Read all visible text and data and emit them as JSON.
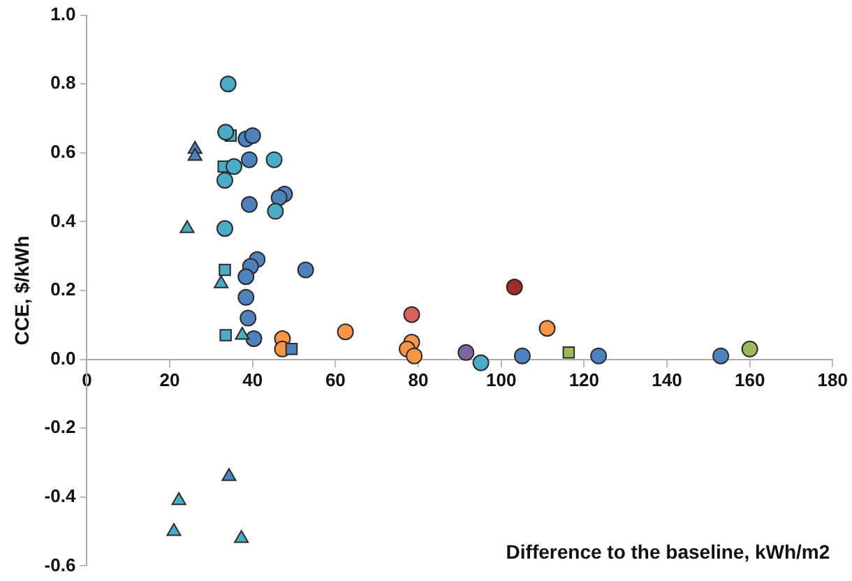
{
  "chart_data": {
    "type": "scatter",
    "xlabel": "Difference to the baseline, kWh/m2",
    "ylabel": "CCE, $/kWh",
    "xlim": [
      0,
      180
    ],
    "xticks": [
      0,
      20,
      40,
      60,
      80,
      100,
      120,
      140,
      160,
      180
    ],
    "ylim": [
      -0.6,
      1
    ],
    "yticks": [
      {
        "value": -0.6,
        "label": "-0.6"
      },
      {
        "value": -0.4,
        "label": "-0.4"
      },
      {
        "value": -0.2,
        "label": "-0.2"
      },
      {
        "value": 0,
        "label": "0.0"
      },
      {
        "value": 0.2,
        "label": "0.2"
      },
      {
        "value": 0.4,
        "label": "0.4"
      },
      {
        "value": 0.6,
        "label": "0.6"
      },
      {
        "value": 0.8,
        "label": "0.8"
      },
      {
        "value": 1,
        "label": "1.0"
      }
    ],
    "grid": false,
    "legend": false,
    "series": [
      {
        "color": "#4bacc6",
        "marker": "circle",
        "x": [
          34.1,
          33.5,
          35.5,
          33.3,
          45.2,
          45.5,
          33.3,
          95.1
        ],
        "values": [
          0.8,
          0.66,
          0.56,
          0.52,
          0.58,
          0.43,
          0.38,
          -0.01
        ]
      },
      {
        "color": "#4bacc6",
        "marker": "square",
        "x": [
          34.7,
          33,
          33.3,
          33.5
        ],
        "values": [
          0.65,
          0.56,
          0.26,
          0.07
        ]
      },
      {
        "color": "#4bacc6",
        "marker": "triangle",
        "x": [
          24.2,
          32.4,
          37.5,
          22.2,
          21,
          37.3
        ],
        "values": [
          0.38,
          0.22,
          0.07,
          -0.41,
          -0.5,
          -0.52
        ]
      },
      {
        "color": "#4f81bd",
        "marker": "triangle",
        "x": [
          26.1,
          26.1,
          34.3
        ],
        "values": [
          0.61,
          0.59,
          -0.34
        ]
      },
      {
        "color": "#4f81bd",
        "marker": "circle",
        "x": [
          38.4,
          40,
          39.2,
          39.2,
          47.7,
          46.4,
          41.1,
          39.5,
          52.8,
          38.4,
          38.4,
          38.9,
          40.3,
          123.5,
          105.1,
          153
        ],
        "values": [
          0.64,
          0.65,
          0.58,
          0.45,
          0.48,
          0.47,
          0.29,
          0.27,
          0.26,
          0.24,
          0.18,
          0.12,
          0.06,
          0.01,
          0.01,
          0.01
        ]
      },
      {
        "color": "#4f81bd",
        "marker": "square",
        "x": [
          49.4
        ],
        "values": [
          0.03
        ]
      },
      {
        "color": "#f79646",
        "marker": "circle",
        "x": [
          47.2,
          47.2,
          62.4,
          111.1,
          78.4,
          77.3,
          79
        ],
        "values": [
          0.06,
          0.03,
          0.08,
          0.09,
          0.05,
          0.03,
          0.01
        ]
      },
      {
        "color": "#d9625f",
        "marker": "circle",
        "x": [
          78.4
        ],
        "values": [
          0.13
        ]
      },
      {
        "color": "#a02b2b",
        "marker": "circle",
        "x": [
          103.2
        ],
        "values": [
          0.21
        ]
      },
      {
        "color": "#8064a2",
        "marker": "circle",
        "x": [
          91.5
        ],
        "values": [
          0.02
        ]
      },
      {
        "color": "#9bbb59",
        "marker": "square",
        "x": [
          116.3
        ],
        "values": [
          0.02
        ]
      },
      {
        "color": "#9bbb59",
        "marker": "circle",
        "x": [
          160
        ],
        "values": [
          0.03
        ]
      }
    ]
  }
}
